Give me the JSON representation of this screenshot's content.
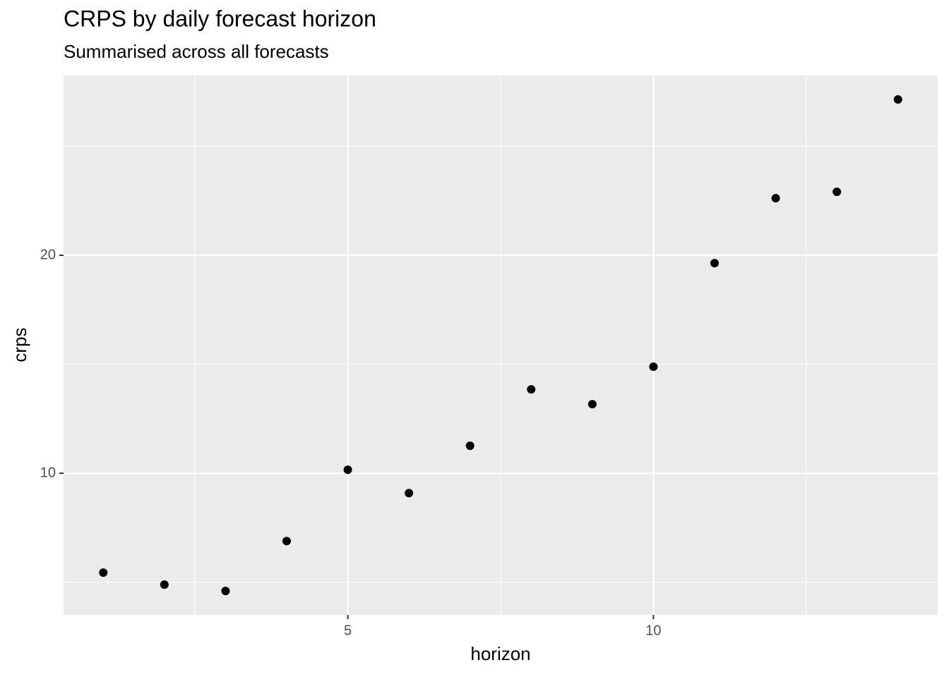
{
  "chart_data": {
    "type": "scatter",
    "title": "CRPS by daily forecast horizon",
    "subtitle": "Summarised across all forecasts",
    "x_label": "horizon",
    "y_label": "crps",
    "x": [
      1,
      2,
      3,
      4,
      5,
      6,
      7,
      8,
      9,
      10,
      11,
      12,
      13,
      14
    ],
    "series": [
      {
        "color": "#000000",
        "values": [
          5.44,
          4.89,
          4.6,
          6.89,
          10.16,
          9.09,
          11.26,
          13.85,
          13.17,
          14.89,
          19.64,
          22.62,
          22.91,
          27.15
        ]
      }
    ],
    "xlim": [
      0.35,
      14.65
    ],
    "ylim": [
      3.5,
      28.25
    ],
    "xticks": [
      5,
      10
    ],
    "yticks": [
      10,
      20
    ],
    "x_minor_ticks": [
      2.5,
      7.5,
      12.5
    ],
    "y_minor_ticks": [
      5,
      15,
      25
    ],
    "grid": true
  }
}
